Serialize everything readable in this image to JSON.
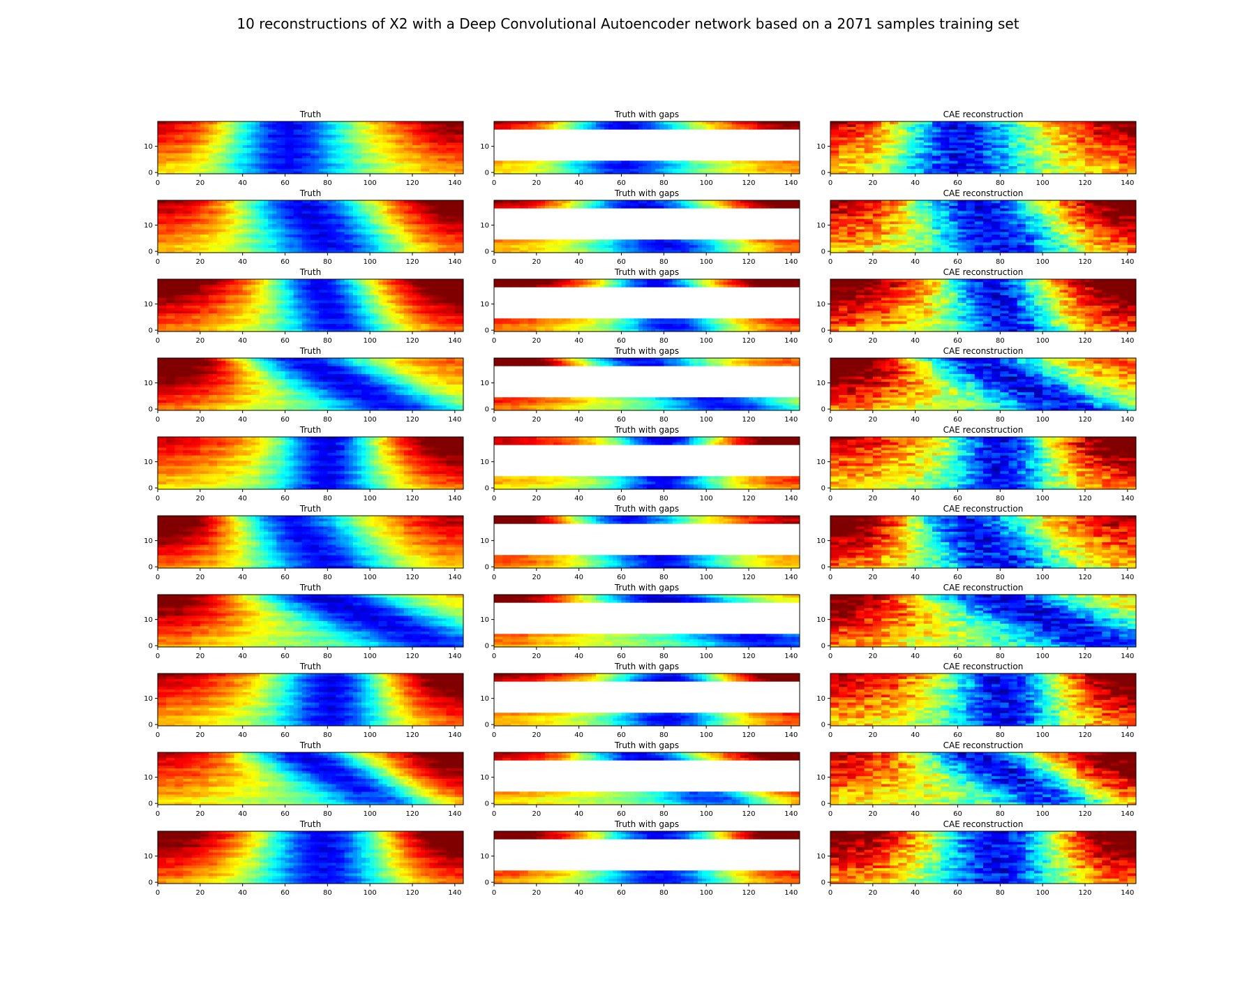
{
  "suptitle": "10 reconstructions of X2 with a Deep Convolutional Autoencoder network based on a 2071 samples training set",
  "chart_data": {
    "type": "heatmap",
    "rows": 10,
    "columns": [
      {
        "title": "Truth",
        "kind": "full"
      },
      {
        "title": "Truth with gaps",
        "kind": "gaps"
      },
      {
        "title": "CAE reconstruction",
        "kind": "reconstruction"
      }
    ],
    "grid_cells": {
      "nx": 144,
      "ny": 20
    },
    "gap_rows": {
      "from": 5,
      "to": 17
    },
    "xlim": [
      0,
      144
    ],
    "ylim": [
      0,
      20
    ],
    "xticks": [
      0,
      20,
      40,
      60,
      80,
      100,
      120,
      140
    ],
    "yticks": [
      0,
      10
    ],
    "colormap": "jet",
    "value_range": [
      -1,
      1
    ],
    "colormap_stops": [
      "#000080",
      "#0000ff",
      "#0080ff",
      "#00ffff",
      "#80ff80",
      "#ffff00",
      "#ff8000",
      "#ff0000",
      "#800000"
    ],
    "samples": [
      {
        "hot_start": 0.55,
        "cold_center": 60,
        "cold_width": 28,
        "hot_end": 0.7,
        "tilt": 0
      },
      {
        "hot_start": 0.6,
        "cold_center": 75,
        "cold_width": 30,
        "hot_end": 0.85,
        "tilt": 8
      },
      {
        "hot_start": 0.85,
        "cold_center": 80,
        "cold_width": 22,
        "hot_end": 0.95,
        "tilt": 5
      },
      {
        "hot_start": 0.95,
        "cold_center": 90,
        "cold_width": 30,
        "hot_end": 0.3,
        "tilt": 25
      },
      {
        "hot_start": 0.55,
        "cold_center": 80,
        "cold_width": 22,
        "hot_end": 0.9,
        "tilt": 0
      },
      {
        "hot_start": 0.9,
        "cold_center": 70,
        "cold_width": 28,
        "hot_end": 0.6,
        "tilt": 10
      },
      {
        "hot_start": 0.8,
        "cold_center": 105,
        "cold_width": 35,
        "hot_end": 0.1,
        "tilt": 30
      },
      {
        "hot_start": 0.6,
        "cold_center": 82,
        "cold_width": 25,
        "hot_end": 0.9,
        "tilt": 0
      },
      {
        "hot_start": 0.55,
        "cold_center": 88,
        "cold_width": 26,
        "hot_end": 0.85,
        "tilt": 22
      },
      {
        "hot_start": 0.8,
        "cold_center": 78,
        "cold_width": 28,
        "hot_end": 0.95,
        "tilt": 0
      }
    ]
  }
}
